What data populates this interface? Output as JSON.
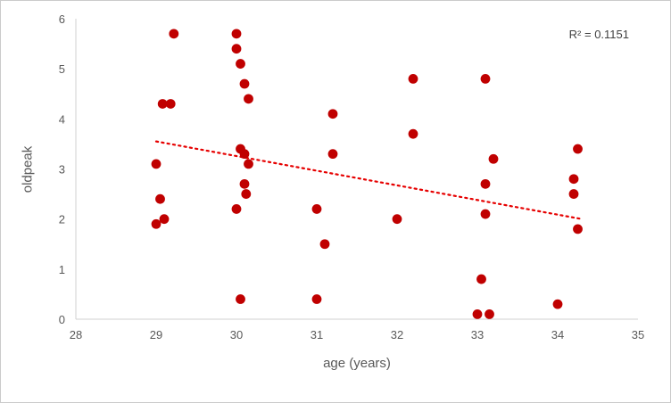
{
  "chart_data": {
    "type": "scatter",
    "title": "",
    "xlabel": "age (years)",
    "ylabel": "oldpeak",
    "xlim": [
      28,
      35
    ],
    "ylim": [
      0,
      6
    ],
    "x_ticks": [
      28,
      29,
      30,
      31,
      32,
      33,
      34,
      35
    ],
    "y_ticks": [
      0,
      1,
      2,
      3,
      4,
      5,
      6
    ],
    "grid": false,
    "legend": "none",
    "annotation": "R² = 0.1151",
    "marker_color": "#c00000",
    "trendline_color": "#e60000",
    "axis_line_color": "#d0d0d0",
    "tick_label_color": "#595959",
    "points": [
      [
        29.0,
        3.1
      ],
      [
        29.0,
        1.9
      ],
      [
        29.05,
        2.4
      ],
      [
        29.1,
        2.0
      ],
      [
        29.08,
        4.3
      ],
      [
        29.18,
        4.3
      ],
      [
        29.22,
        5.7
      ],
      [
        30.0,
        5.7
      ],
      [
        30.0,
        5.4
      ],
      [
        30.05,
        5.1
      ],
      [
        30.1,
        4.7
      ],
      [
        30.15,
        4.4
      ],
      [
        30.05,
        3.4
      ],
      [
        30.1,
        3.3
      ],
      [
        30.15,
        3.1
      ],
      [
        30.1,
        2.7
      ],
      [
        30.12,
        2.5
      ],
      [
        30.0,
        2.2
      ],
      [
        30.05,
        0.4
      ],
      [
        31.0,
        2.2
      ],
      [
        31.0,
        0.4
      ],
      [
        31.1,
        1.5
      ],
      [
        31.2,
        4.1
      ],
      [
        31.2,
        3.3
      ],
      [
        32.0,
        2.0
      ],
      [
        32.2,
        4.8
      ],
      [
        32.2,
        3.7
      ],
      [
        33.0,
        0.1
      ],
      [
        33.15,
        0.1
      ],
      [
        33.1,
        4.8
      ],
      [
        33.1,
        2.7
      ],
      [
        33.1,
        2.1
      ],
      [
        33.05,
        0.8
      ],
      [
        33.2,
        3.2
      ],
      [
        34.0,
        0.3
      ],
      [
        34.2,
        2.8
      ],
      [
        34.2,
        2.5
      ],
      [
        34.25,
        3.4
      ],
      [
        34.25,
        1.8
      ]
    ],
    "trendline": {
      "x1": 29.0,
      "y1": 3.55,
      "x2": 34.3,
      "y2": 2.0,
      "style": "dotted"
    }
  }
}
